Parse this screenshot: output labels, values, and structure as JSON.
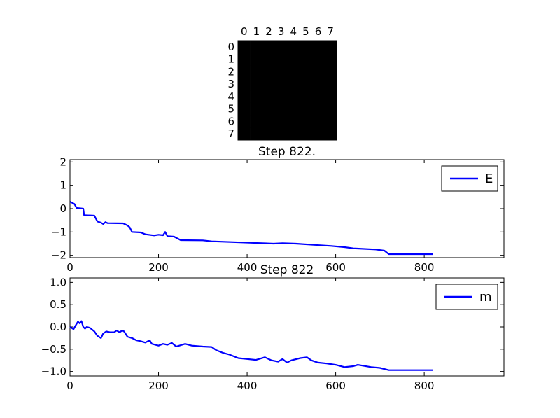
{
  "chart_data": [
    {
      "type": "heatmap",
      "title": "Step 822.",
      "xticks": [
        "0",
        "1",
        "2",
        "3",
        "4",
        "5",
        "6",
        "7"
      ],
      "yticks": [
        "0",
        "1",
        "2",
        "3",
        "4",
        "5",
        "6",
        "7"
      ],
      "grid_size": [
        8,
        8
      ],
      "values": [
        [
          1,
          1,
          1,
          1,
          1,
          1,
          1,
          1
        ],
        [
          1,
          1,
          1,
          1,
          1,
          1,
          1,
          1
        ],
        [
          1,
          1,
          1,
          1,
          1,
          1,
          1,
          1
        ],
        [
          1,
          1,
          1,
          1,
          1,
          1,
          1,
          1
        ],
        [
          1,
          1,
          1,
          1,
          1,
          1,
          1,
          1
        ],
        [
          1,
          1,
          1,
          1,
          1,
          1,
          1,
          1
        ],
        [
          1,
          1,
          1,
          1,
          1,
          1,
          1,
          1
        ],
        [
          1,
          1,
          1,
          1,
          1,
          1,
          1,
          1
        ]
      ],
      "cell_color": "#000000"
    },
    {
      "type": "line",
      "title": "Step 822",
      "xlim": [
        0,
        980
      ],
      "ylim": [
        -2.1,
        2.1
      ],
      "xticks": [
        0,
        200,
        400,
        600,
        800
      ],
      "yticks": [
        2,
        1,
        0,
        -1,
        -2
      ],
      "legend_position": "top-right",
      "grid": false,
      "series": [
        {
          "name": "E",
          "color": "#0000ff",
          "points": [
            [
              0,
              0.3
            ],
            [
              10,
              0.2
            ],
            [
              15,
              0.03
            ],
            [
              30,
              0.0
            ],
            [
              32,
              -0.28
            ],
            [
              55,
              -0.3
            ],
            [
              62,
              -0.55
            ],
            [
              70,
              -0.6
            ],
            [
              75,
              -0.66
            ],
            [
              80,
              -0.58
            ],
            [
              85,
              -0.62
            ],
            [
              120,
              -0.63
            ],
            [
              130,
              -0.72
            ],
            [
              135,
              -0.8
            ],
            [
              140,
              -1.0
            ],
            [
              160,
              -1.02
            ],
            [
              170,
              -1.1
            ],
            [
              190,
              -1.15
            ],
            [
              200,
              -1.12
            ],
            [
              210,
              -1.14
            ],
            [
              215,
              -1.0
            ],
            [
              220,
              -1.18
            ],
            [
              235,
              -1.2
            ],
            [
              250,
              -1.35
            ],
            [
              300,
              -1.36
            ],
            [
              320,
              -1.4
            ],
            [
              390,
              -1.45
            ],
            [
              460,
              -1.5
            ],
            [
              480,
              -1.48
            ],
            [
              510,
              -1.5
            ],
            [
              550,
              -1.55
            ],
            [
              590,
              -1.6
            ],
            [
              620,
              -1.65
            ],
            [
              640,
              -1.7
            ],
            [
              690,
              -1.75
            ],
            [
              710,
              -1.8
            ],
            [
              720,
              -1.95
            ],
            [
              820,
              -1.95
            ]
          ]
        }
      ]
    },
    {
      "type": "line",
      "title": "",
      "xlim": [
        0,
        980
      ],
      "ylim": [
        -1.1,
        1.1
      ],
      "xticks": [
        0,
        200,
        400,
        600,
        800
      ],
      "yticks": [
        1.0,
        0.5,
        0.0,
        -0.5,
        -1.0
      ],
      "legend_position": "top-right",
      "grid": false,
      "series": [
        {
          "name": "m",
          "color": "#0000ff",
          "points": [
            [
              0,
              0.0
            ],
            [
              8,
              -0.05
            ],
            [
              12,
              0.02
            ],
            [
              18,
              0.12
            ],
            [
              22,
              0.08
            ],
            [
              26,
              0.13
            ],
            [
              30,
              0.0
            ],
            [
              34,
              -0.04
            ],
            [
              38,
              0.0
            ],
            [
              45,
              -0.02
            ],
            [
              55,
              -0.1
            ],
            [
              62,
              -0.2
            ],
            [
              70,
              -0.25
            ],
            [
              75,
              -0.15
            ],
            [
              82,
              -0.1
            ],
            [
              90,
              -0.12
            ],
            [
              100,
              -0.12
            ],
            [
              105,
              -0.08
            ],
            [
              112,
              -0.12
            ],
            [
              118,
              -0.08
            ],
            [
              122,
              -0.1
            ],
            [
              130,
              -0.22
            ],
            [
              140,
              -0.25
            ],
            [
              150,
              -0.3
            ],
            [
              160,
              -0.32
            ],
            [
              170,
              -0.35
            ],
            [
              180,
              -0.3
            ],
            [
              185,
              -0.38
            ],
            [
              200,
              -0.42
            ],
            [
              210,
              -0.38
            ],
            [
              220,
              -0.4
            ],
            [
              230,
              -0.36
            ],
            [
              240,
              -0.44
            ],
            [
              260,
              -0.38
            ],
            [
              275,
              -0.42
            ],
            [
              300,
              -0.44
            ],
            [
              320,
              -0.45
            ],
            [
              330,
              -0.52
            ],
            [
              345,
              -0.58
            ],
            [
              360,
              -0.62
            ],
            [
              380,
              -0.7
            ],
            [
              400,
              -0.72
            ],
            [
              420,
              -0.74
            ],
            [
              440,
              -0.68
            ],
            [
              455,
              -0.75
            ],
            [
              470,
              -0.78
            ],
            [
              480,
              -0.72
            ],
            [
              490,
              -0.8
            ],
            [
              500,
              -0.75
            ],
            [
              520,
              -0.7
            ],
            [
              535,
              -0.68
            ],
            [
              545,
              -0.75
            ],
            [
              560,
              -0.8
            ],
            [
              580,
              -0.82
            ],
            [
              600,
              -0.85
            ],
            [
              620,
              -0.9
            ],
            [
              640,
              -0.88
            ],
            [
              650,
              -0.85
            ],
            [
              680,
              -0.9
            ],
            [
              700,
              -0.92
            ],
            [
              720,
              -0.97
            ],
            [
              820,
              -0.97
            ]
          ]
        }
      ]
    }
  ]
}
